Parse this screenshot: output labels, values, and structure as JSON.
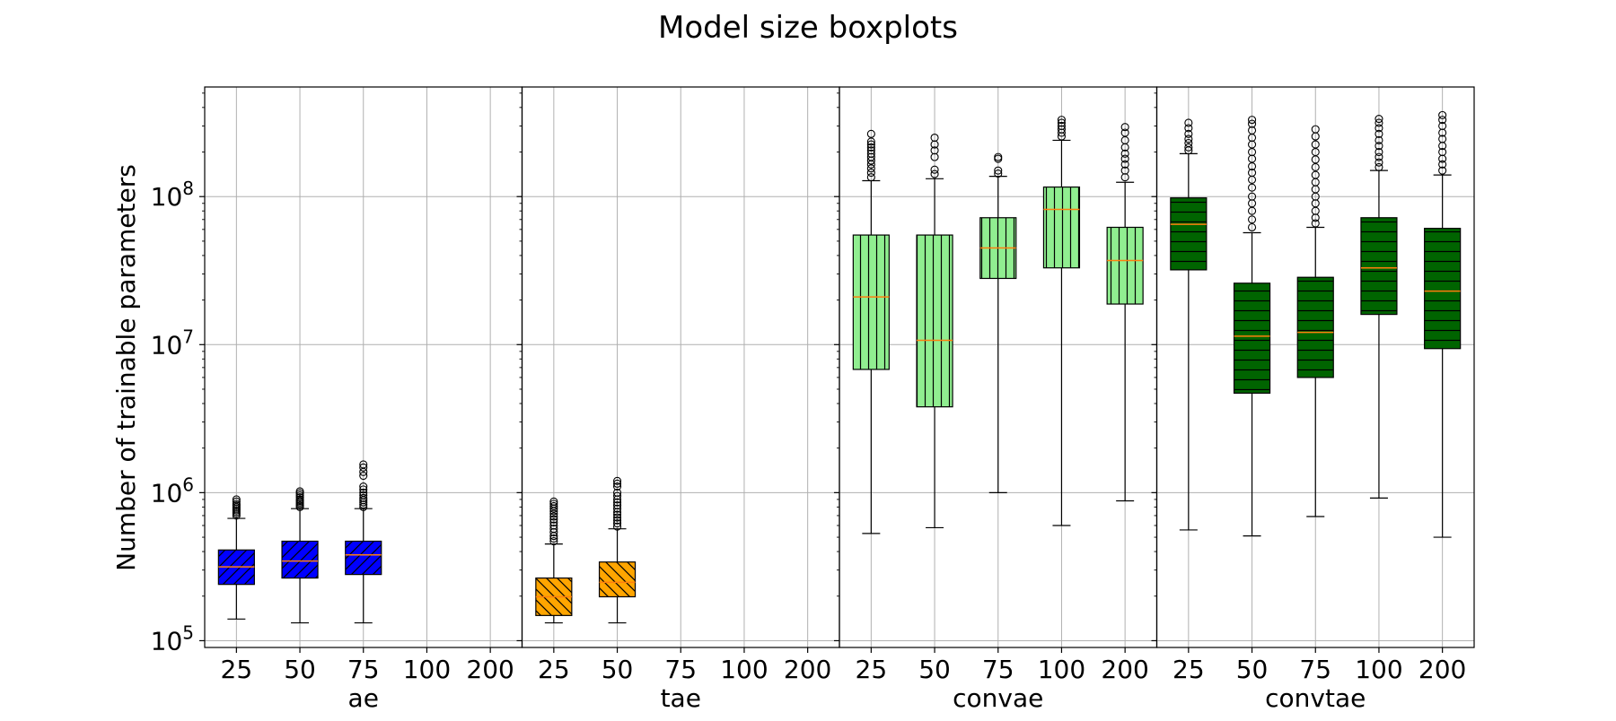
{
  "chart_data": {
    "type": "boxplot",
    "title": "Model size boxplots",
    "ylabel": "Number of trainable parameters",
    "yscale": "log",
    "ylim": [
      90000,
      550000000
    ],
    "y_ticks": [
      {
        "value": 100000,
        "base": "10",
        "exp": "5"
      },
      {
        "value": 1000000,
        "base": "10",
        "exp": "6"
      },
      {
        "value": 10000000,
        "base": "10",
        "exp": "7"
      },
      {
        "value": 100000000,
        "base": "10",
        "exp": "8"
      }
    ],
    "categories": [
      "25",
      "50",
      "75",
      "100",
      "200"
    ],
    "grid": true,
    "panels": [
      {
        "name": "ae",
        "color": "#0000ff",
        "hatch": "diagonal-forward",
        "boxes": [
          {
            "category": "25",
            "whislo": 140000,
            "q1": 240000,
            "median": 315000,
            "q3": 410000,
            "whishi": 670000,
            "fliers": [
              700000,
              720000,
              740000,
              760000,
              780000,
              800000,
              820000,
              840000,
              870000,
              900000
            ]
          },
          {
            "category": "50",
            "whislo": 132000,
            "q1": 265000,
            "median": 345000,
            "q3": 470000,
            "whishi": 780000,
            "fliers": [
              800000,
              820000,
              840000,
              860000,
              880000,
              900000,
              930000,
              960000,
              990000,
              1020000
            ]
          },
          {
            "category": "75",
            "whislo": 132000,
            "q1": 280000,
            "median": 380000,
            "q3": 470000,
            "whishi": 780000,
            "fliers": [
              800000,
              830000,
              860000,
              890000,
              920000,
              960000,
              1000000,
              1050000,
              1100000,
              1300000,
              1380000,
              1480000,
              1550000
            ]
          },
          {
            "category": "100",
            "empty": true
          },
          {
            "category": "200",
            "empty": true
          }
        ]
      },
      {
        "name": "tae",
        "color": "#ffa500",
        "hatch": "diagonal-back",
        "boxes": [
          {
            "category": "25",
            "whislo": 132000,
            "q1": 148000,
            "median": 198000,
            "q3": 265000,
            "whishi": 450000,
            "fliers": [
              470000,
              490000,
              510000,
              540000,
              570000,
              600000,
              630000,
              660000,
              690000,
              720000,
              750000,
              780000,
              810000,
              840000,
              870000
            ]
          },
          {
            "category": "50",
            "whislo": 132000,
            "q1": 198000,
            "median": 248000,
            "q3": 340000,
            "whishi": 570000,
            "fliers": [
              590000,
              620000,
              650000,
              680000,
              710000,
              740000,
              780000,
              820000,
              860000,
              900000,
              950000,
              1000000,
              1100000,
              1150000,
              1200000
            ]
          },
          {
            "category": "75",
            "empty": true
          },
          {
            "category": "100",
            "empty": true
          },
          {
            "category": "200",
            "empty": true
          }
        ]
      },
      {
        "name": "convae",
        "color": "#90ee90",
        "hatch": "vertical",
        "boxes": [
          {
            "category": "25",
            "whislo": 530000,
            "q1": 6800000,
            "median": 21000000,
            "q3": 55000000,
            "whishi": 128000000,
            "fliers": [
              135000000,
              145000000,
              155000000,
              165000000,
              175000000,
              185000000,
              195000000,
              205000000,
              215000000,
              225000000,
              235000000,
              265000000
            ]
          },
          {
            "category": "50",
            "whislo": 580000,
            "q1": 3800000,
            "median": 10700000,
            "q3": 55000000,
            "whishi": 132000000,
            "fliers": [
              142000000,
              152000000,
              185000000,
              205000000,
              225000000,
              250000000
            ]
          },
          {
            "category": "75",
            "whislo": 1000000,
            "q1": 28000000,
            "median": 45000000,
            "q3": 72000000,
            "whishi": 137000000,
            "fliers": [
              143000000,
              150000000,
              180000000,
              185000000
            ]
          },
          {
            "category": "100",
            "whislo": 600000,
            "q1": 33000000,
            "median": 82000000,
            "q3": 116000000,
            "whishi": 240000000,
            "fliers": [
              255000000,
              270000000,
              285000000,
              300000000,
              315000000,
              330000000
            ]
          },
          {
            "category": "200",
            "whislo": 880000,
            "q1": 18800000,
            "median": 37000000,
            "q3": 62000000,
            "whishi": 125000000,
            "fliers": [
              135000000,
              150000000,
              165000000,
              180000000,
              195000000,
              215000000,
              240000000,
              270000000,
              295000000
            ]
          }
        ]
      },
      {
        "name": "convtae",
        "color": "#006400",
        "hatch": "horizontal",
        "boxes": [
          {
            "category": "25",
            "whislo": 560000,
            "q1": 32000000,
            "median": 65000000,
            "q3": 98000000,
            "whishi": 195000000,
            "fliers": [
              205000000,
              215000000,
              230000000,
              245000000,
              265000000,
              290000000,
              315000000
            ]
          },
          {
            "category": "50",
            "whislo": 510000,
            "q1": 4700000,
            "median": 11400000,
            "q3": 26000000,
            "whishi": 57000000,
            "fliers": [
              62000000,
              70000000,
              80000000,
              90000000,
              100000000,
              115000000,
              130000000,
              145000000,
              160000000,
              180000000,
              200000000,
              225000000,
              250000000,
              280000000,
              310000000,
              330000000
            ]
          },
          {
            "category": "75",
            "whislo": 690000,
            "q1": 6000000,
            "median": 12100000,
            "q3": 28500000,
            "whishi": 62000000,
            "fliers": [
              66000000,
              72000000,
              80000000,
              90000000,
              100000000,
              112000000,
              125000000,
              140000000,
              158000000,
              178000000,
              200000000,
              225000000,
              255000000,
              285000000
            ]
          },
          {
            "category": "100",
            "whislo": 920000,
            "q1": 16000000,
            "median": 33000000,
            "q3": 72000000,
            "whishi": 150000000,
            "fliers": [
              158000000,
              170000000,
              185000000,
              200000000,
              220000000,
              240000000,
              265000000,
              290000000,
              315000000,
              335000000
            ]
          },
          {
            "category": "200",
            "whislo": 500000,
            "q1": 9400000,
            "median": 23000000,
            "q3": 61000000,
            "whishi": 140000000,
            "fliers": [
              150000000,
              165000000,
              180000000,
              200000000,
              220000000,
              245000000,
              270000000,
              300000000,
              330000000,
              355000000
            ]
          }
        ]
      }
    ]
  }
}
